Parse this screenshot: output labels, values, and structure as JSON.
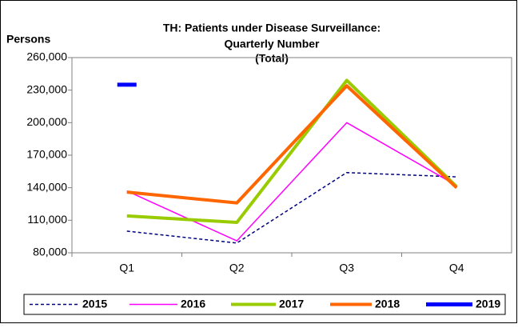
{
  "chart_data": {
    "type": "line",
    "title": [
      "TH: Patients under Disease Surveillance:",
      "Quarterly Number",
      "(Total)"
    ],
    "y_label": "Persons",
    "categories": [
      "Q1",
      "Q2",
      "Q3",
      "Q4"
    ],
    "series": [
      {
        "name": "2015",
        "color": "#000080",
        "dashed": true,
        "values": [
          100000,
          89000,
          154000,
          150000
        ]
      },
      {
        "name": "2016",
        "color": "#ff00ff",
        "dashed": false,
        "values": [
          137000,
          91000,
          200000,
          142000
        ]
      },
      {
        "name": "2017",
        "color": "#99cc00",
        "dashed": false,
        "values": [
          114000,
          108000,
          239000,
          141000
        ]
      },
      {
        "name": "2018",
        "color": "#ff6600",
        "dashed": false,
        "values": [
          136000,
          126000,
          234000,
          140000
        ]
      },
      {
        "name": "2019",
        "color": "#0000ff",
        "dashed": false,
        "values": [
          235000,
          null,
          null,
          null
        ]
      }
    ],
    "ylim": [
      80000,
      260000
    ],
    "yticks": [
      {
        "value": 80000,
        "label": "80,000"
      },
      {
        "value": 110000,
        "label": "110,000"
      },
      {
        "value": 140000,
        "label": "140,000"
      },
      {
        "value": 170000,
        "label": "170,000"
      },
      {
        "value": 200000,
        "label": "200,000"
      },
      {
        "value": 230000,
        "label": "230,000"
      },
      {
        "value": 260000,
        "label": "260,000"
      }
    ],
    "legend": "bottom"
  }
}
